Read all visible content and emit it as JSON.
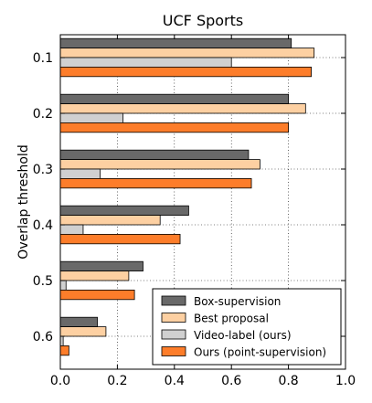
{
  "chart_data": {
    "type": "bar",
    "orientation": "horizontal",
    "title": "UCF Sports",
    "ylabel": "Overlap threshold",
    "xlabel": "",
    "xlim": [
      0.0,
      1.0
    ],
    "x_ticks": [
      "0.0",
      "0.2",
      "0.4",
      "0.6",
      "0.8",
      "1.0"
    ],
    "categories": [
      "0.1",
      "0.2",
      "0.3",
      "0.4",
      "0.5",
      "0.6"
    ],
    "grid": true,
    "legend_position": "lower-right",
    "series": [
      {
        "name": "Box-supervision",
        "color": "#696969",
        "values": [
          0.81,
          0.8,
          0.66,
          0.45,
          0.29,
          0.13
        ]
      },
      {
        "name": "Best proposal",
        "color": "#fdd0a2",
        "values": [
          0.89,
          0.86,
          0.7,
          0.35,
          0.24,
          0.16
        ]
      },
      {
        "name": "Video-label (ours)",
        "color": "#d0d0d0",
        "values": [
          0.6,
          0.22,
          0.14,
          0.08,
          0.02,
          0.01
        ]
      },
      {
        "name": "Ours (point-supervision)",
        "color": "#fd7d2a",
        "values": [
          0.88,
          0.8,
          0.67,
          0.42,
          0.26,
          0.03
        ]
      }
    ]
  }
}
